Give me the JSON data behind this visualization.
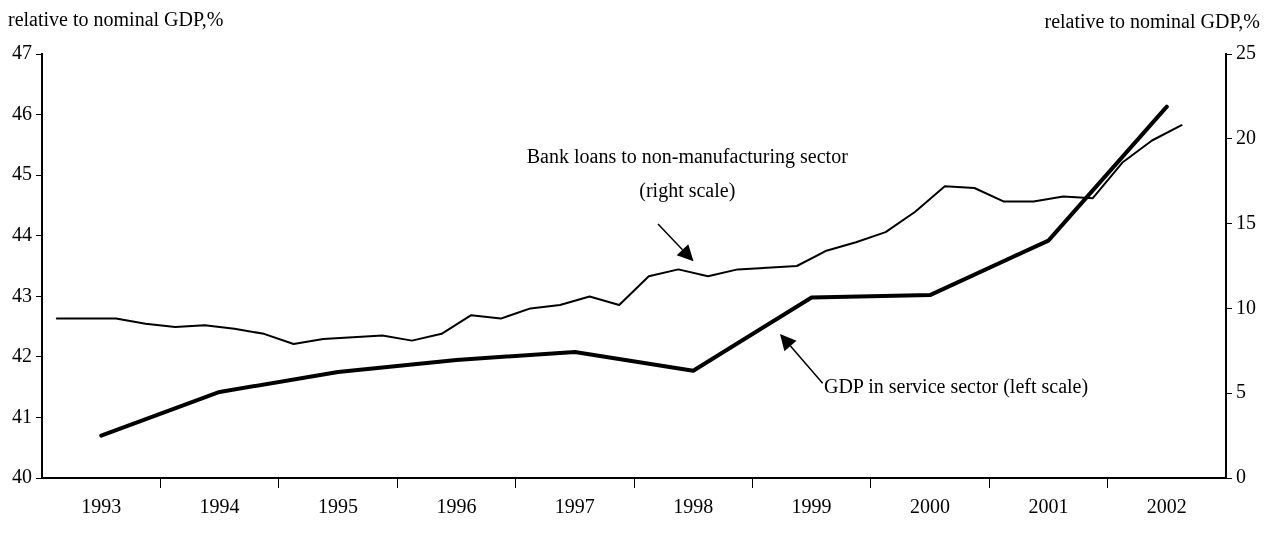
{
  "chart_data": {
    "type": "line",
    "ylabel": "relative to nominal GDP,%",
    "y2label": "relative to nominal GDP,%",
    "xlim": [
      1992.5,
      2002.5
    ],
    "xticks": [
      1993,
      {
        "value": 1993.5,
        "label": null
      },
      1994,
      {
        "value": 1994.5,
        "label": null
      },
      1995,
      {
        "value": 1995.5,
        "label": null
      },
      1996,
      {
        "value": 1996.5,
        "label": null
      },
      1997,
      {
        "value": 1997.5,
        "label": null
      },
      1998,
      {
        "value": 1998.5,
        "label": null
      },
      1999,
      {
        "value": 1999.5,
        "label": null
      },
      2000,
      {
        "value": 2000.5,
        "label": null
      },
      2001,
      {
        "value": 2001.5,
        "label": null
      },
      2002
    ],
    "ylim": [
      40,
      47
    ],
    "yticks": [
      40,
      41,
      42,
      43,
      44,
      45,
      46,
      47
    ],
    "y2lim": [
      0,
      25
    ],
    "y2ticks": [
      0,
      5,
      10,
      15,
      20,
      25
    ],
    "series": [
      {
        "color": "#000000",
        "axis": "y2",
        "x": [
          1992.625,
          1992.875,
          1993.125,
          1993.375,
          1993.625,
          1993.875,
          1994.125,
          1994.375,
          1994.625,
          1994.875,
          1995.125,
          1995.375,
          1995.625,
          1995.875,
          1996.125,
          1996.375,
          1996.625,
          1996.875,
          1997.125,
          1997.375,
          1997.625,
          1997.875,
          1998.125,
          1998.375,
          1998.625,
          1998.875,
          1999.125,
          1999.375,
          1999.625,
          1999.875,
          2000.125,
          2000.375,
          2000.625,
          2000.875,
          2001.125,
          2001.375,
          2001.625,
          2001.875,
          2002.125
        ],
        "values": [
          9.4,
          9.4,
          9.4,
          9.1,
          8.9,
          9.0,
          8.8,
          8.5,
          7.9,
          8.2,
          8.3,
          8.4,
          8.1,
          8.5,
          9.6,
          9.4,
          10.0,
          10.2,
          10.7,
          10.2,
          11.9,
          12.3,
          11.9,
          12.3,
          12.4,
          12.5,
          13.4,
          13.9,
          14.5,
          15.7,
          17.2,
          17.1,
          16.3,
          16.3,
          16.6,
          16.5,
          18.6,
          19.9,
          20.8
        ]
      },
      {
        "color": "#000000",
        "axis": "y",
        "x": [
          1993,
          1994,
          1995,
          1996,
          1997,
          1998,
          1999,
          2000,
          2001,
          2002
        ],
        "values": [
          40.7,
          41.42,
          41.75,
          41.95,
          42.08,
          41.77,
          42.98,
          43.02,
          43.92,
          46.13
        ]
      }
    ],
    "annotations": [
      "Bank loans to non-manufacturing sector\n(right scale)",
      "GDP in service sector (left scale)"
    ]
  }
}
